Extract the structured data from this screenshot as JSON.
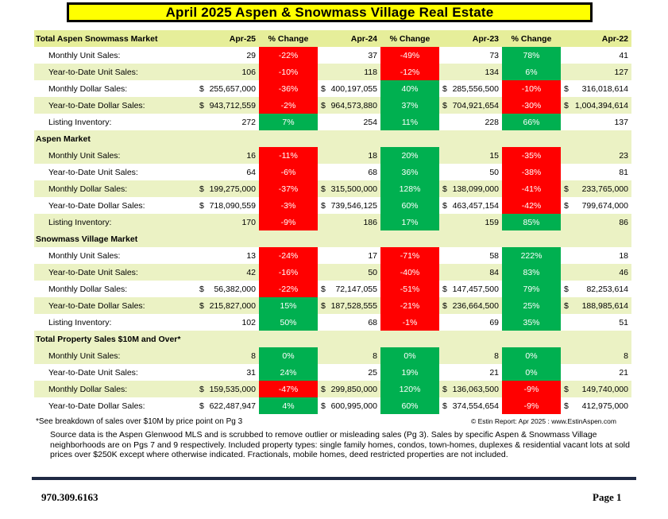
{
  "title": "April 2025 Aspen & Snowmass Village Real Estate",
  "columns": [
    "Apr-25",
    "% Change",
    "Apr-24",
    "% Change",
    "Apr-23",
    "% Change",
    "Apr-22"
  ],
  "colors": {
    "title_bg": "#ffff00",
    "header_bg": "#e6ee9a",
    "row_alt": "#ebf2c4",
    "negative": "#ff0000",
    "positive": "#00b050",
    "rule": "#1f2a44"
  },
  "sections": [
    {
      "name": "Total Aspen Snowmass Market",
      "rows": [
        {
          "label": "Monthly Unit Sales:",
          "v25": "29",
          "p1": "-22%",
          "v24": "37",
          "p2": "-49%",
          "v23": "73",
          "p3": "78%",
          "v22": "41",
          "c1": "red",
          "c2": "red",
          "c3": "green",
          "dollar": false
        },
        {
          "label": "Year-to-Date Unit Sales:",
          "v25": "106",
          "p1": "-10%",
          "v24": "118",
          "p2": "-12%",
          "v23": "134",
          "p3": "6%",
          "v22": "127",
          "c1": "red",
          "c2": "red",
          "c3": "green",
          "dollar": false
        },
        {
          "label": "Monthly Dollar Sales:",
          "v25": "255,657,000",
          "p1": "-36%",
          "v24": "400,197,055",
          "p2": "40%",
          "v23": "285,556,500",
          "p3": "-10%",
          "v22": "316,018,614",
          "c1": "red",
          "c2": "green",
          "c3": "red",
          "dollar": true
        },
        {
          "label": "Year-to-Date Dollar Sales:",
          "v25": "943,712,559",
          "p1": "-2%",
          "v24": "964,573,880",
          "p2": "37%",
          "v23": "704,921,654",
          "p3": "-30%",
          "v22": "1,004,394,614",
          "c1": "red",
          "c2": "green",
          "c3": "red",
          "dollar": true
        },
        {
          "label": "Listing Inventory:",
          "v25": "272",
          "p1": "7%",
          "v24": "254",
          "p2": "11%",
          "v23": "228",
          "p3": "66%",
          "v22": "137",
          "c1": "green",
          "c2": "green",
          "c3": "green",
          "dollar": false
        }
      ]
    },
    {
      "name": "Aspen Market",
      "rows": [
        {
          "label": "Monthly Unit Sales:",
          "v25": "16",
          "p1": "-11%",
          "v24": "18",
          "p2": "20%",
          "v23": "15",
          "p3": "-35%",
          "v22": "23",
          "c1": "red",
          "c2": "green",
          "c3": "red",
          "dollar": false
        },
        {
          "label": "Year-to-Date Unit Sales:",
          "v25": "64",
          "p1": "-6%",
          "v24": "68",
          "p2": "36%",
          "v23": "50",
          "p3": "-38%",
          "v22": "81",
          "c1": "red",
          "c2": "green",
          "c3": "red",
          "dollar": false
        },
        {
          "label": "Monthly Dollar Sales:",
          "v25": "199,275,000",
          "p1": "-37%",
          "v24": "315,500,000",
          "p2": "128%",
          "v23": "138,099,000",
          "p3": "-41%",
          "v22": "233,765,000",
          "c1": "red",
          "c2": "green",
          "c3": "red",
          "dollar": true
        },
        {
          "label": "Year-to-Date Dollar Sales:",
          "v25": "718,090,559",
          "p1": "-3%",
          "v24": "739,546,125",
          "p2": "60%",
          "v23": "463,457,154",
          "p3": "-42%",
          "v22": "799,674,000",
          "c1": "red",
          "c2": "green",
          "c3": "red",
          "dollar": true
        },
        {
          "label": "Listing Inventory:",
          "v25": "170",
          "p1": "-9%",
          "v24": "186",
          "p2": "17%",
          "v23": "159",
          "p3": "85%",
          "v22": "86",
          "c1": "red",
          "c2": "green",
          "c3": "green",
          "dollar": false
        }
      ]
    },
    {
      "name": "Snowmass Village Market",
      "rows": [
        {
          "label": "Monthly Unit Sales:",
          "v25": "13",
          "p1": "-24%",
          "v24": "17",
          "p2": "-71%",
          "v23": "58",
          "p3": "222%",
          "v22": "18",
          "c1": "red",
          "c2": "red",
          "c3": "green",
          "dollar": false
        },
        {
          "label": "Year-to-Date Unit Sales:",
          "v25": "42",
          "p1": "-16%",
          "v24": "50",
          "p2": "-40%",
          "v23": "84",
          "p3": "83%",
          "v22": "46",
          "c1": "red",
          "c2": "red",
          "c3": "green",
          "dollar": false
        },
        {
          "label": "Monthly Dollar Sales:",
          "v25": "56,382,000",
          "p1": "-22%",
          "v24": "72,147,055",
          "p2": "-51%",
          "v23": "147,457,500",
          "p3": "79%",
          "v22": "82,253,614",
          "c1": "red",
          "c2": "red",
          "c3": "green",
          "dollar": true
        },
        {
          "label": "Year-to-Date Dollar Sales:",
          "v25": "215,827,000",
          "p1": "15%",
          "v24": "187,528,555",
          "p2": "-21%",
          "v23": "236,664,500",
          "p3": "25%",
          "v22": "188,985,614",
          "c1": "green",
          "c2": "red",
          "c3": "green",
          "dollar": true
        },
        {
          "label": "Listing Inventory:",
          "v25": "102",
          "p1": "50%",
          "v24": "68",
          "p2": "-1%",
          "v23": "69",
          "p3": "35%",
          "v22": "51",
          "c1": "green",
          "c2": "red",
          "c3": "green",
          "dollar": false
        }
      ]
    },
    {
      "name": "Total Property Sales $10M and Over*",
      "rows": [
        {
          "label": "Monthly Unit Sales:",
          "v25": "8",
          "p1": "0%",
          "v24": "8",
          "p2": "0%",
          "v23": "8",
          "p3": "0%",
          "v22": "8",
          "c1": "green",
          "c2": "green",
          "c3": "green",
          "dollar": false
        },
        {
          "label": "Year-to-Date Unit Sales:",
          "v25": "31",
          "p1": "24%",
          "v24": "25",
          "p2": "19%",
          "v23": "21",
          "p3": "0%",
          "v22": "21",
          "c1": "green",
          "c2": "green",
          "c3": "green",
          "dollar": false
        },
        {
          "label": "Monthly Dollar Sales:",
          "v25": "159,535,000",
          "p1": "-47%",
          "v24": "299,850,000",
          "p2": "120%",
          "v23": "136,063,500",
          "p3": "-9%",
          "v22": "149,740,000",
          "c1": "red",
          "c2": "green",
          "c3": "red",
          "dollar": true
        },
        {
          "label": "Year-to-Date Dollar Sales:",
          "v25": "622,487,947",
          "p1": "4%",
          "v24": "600,995,000",
          "p2": "60%",
          "v23": "374,554,654",
          "p3": "-9%",
          "v22": "412,975,000",
          "c1": "green",
          "c2": "green",
          "c3": "red",
          "dollar": true
        }
      ]
    }
  ],
  "currency_symbol": "$",
  "footnote": "*See breakdown of sales over $10M by price point on Pg 3",
  "copyright": "© Estin Report: Apr 2025 : www.EstinAspen.com",
  "source": "Source data is the Aspen Glenwood MLS and is scrubbed to remove outlier or misleading sales (Pg 3). Sales by specific Aspen & Snowmass Village neighborhoods are on Pgs 7 and 9 respectively. Included property types: single family homes, condos, town-homes, duplexes & residential vacant lots at sold prices over $250K except where otherwise indicated. Fractionals, mobile homes, deed restricted properties are not included.",
  "phone": "970.309.6163",
  "page": "Page 1"
}
